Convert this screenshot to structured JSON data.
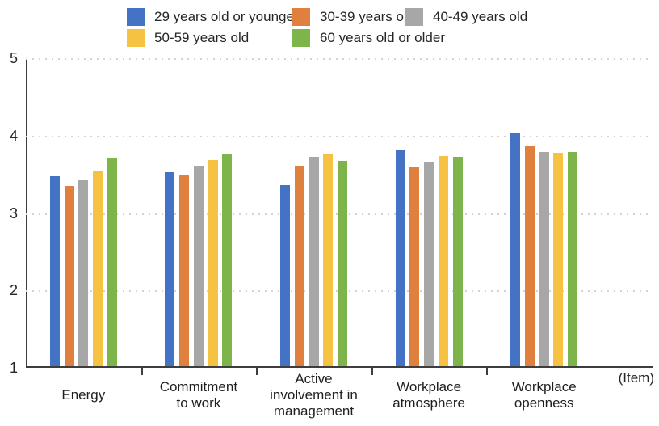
{
  "chart_data": {
    "type": "bar",
    "title": "",
    "categories": [
      "Energy",
      "Commitment to work",
      "Active involvement in management",
      "Workplace atmosphere",
      "Workplace openness"
    ],
    "category_label_lines": [
      [
        "Energy"
      ],
      [
        "Commitment",
        "to work"
      ],
      [
        "Active",
        "involvement in",
        "management"
      ],
      [
        "Workplace",
        "atmosphere"
      ],
      [
        "Workplace",
        "openness"
      ]
    ],
    "series": [
      {
        "name": "29 years old or younger",
        "color": "#4472C4",
        "values": [
          3.45,
          3.51,
          3.34,
          3.8,
          4.01
        ]
      },
      {
        "name": "30-39 years old",
        "color": "#E0803E",
        "values": [
          3.33,
          3.48,
          3.59,
          3.57,
          3.85
        ]
      },
      {
        "name": "40-49 years old",
        "color": "#A7A7A7",
        "values": [
          3.4,
          3.59,
          3.71,
          3.64,
          3.77
        ]
      },
      {
        "name": "50-59 years old",
        "color": "#F5C242",
        "values": [
          3.52,
          3.66,
          3.74,
          3.72,
          3.76
        ]
      },
      {
        "name": "60 years old or older",
        "color": "#7DB54A",
        "values": [
          3.68,
          3.75,
          3.65,
          3.71,
          3.77
        ]
      }
    ],
    "ylim": [
      1,
      5
    ],
    "yticks": [
      1,
      2,
      3,
      4,
      5
    ],
    "xlabel_note": "(Item)",
    "grid": "horizontal-dotted-at-2-3-4-5",
    "legend_position": "top"
  },
  "colors": {
    "axis_line": "#3d3d3d",
    "gridline": "#d6d2cd",
    "text": "#262626",
    "background": "#ffffff"
  }
}
